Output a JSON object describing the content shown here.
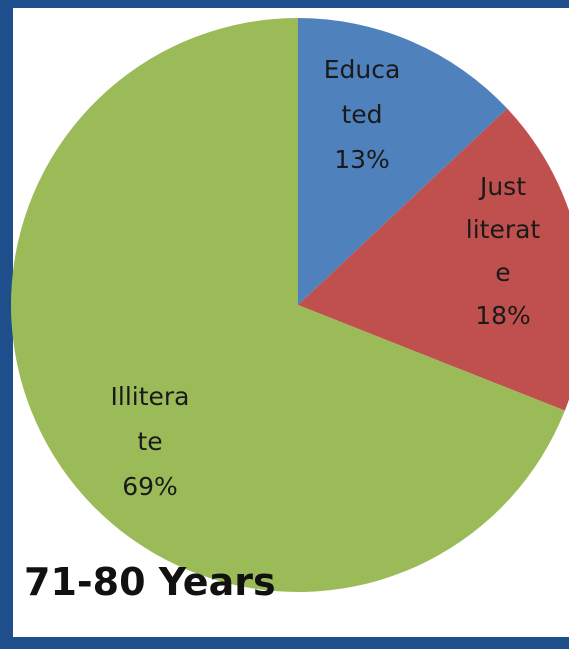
{
  "chart_data": {
    "type": "pie",
    "title": "71-80 Years",
    "slices": [
      {
        "category": "Educated",
        "label_lines": [
          "Educa",
          "ted",
          "13%"
        ],
        "value": 13,
        "color": "#4f81bd"
      },
      {
        "category": "Just literate",
        "label_lines": [
          "Just",
          "literat",
          "e",
          "18%"
        ],
        "value": 18,
        "color": "#c0504d"
      },
      {
        "category": "Illiterate",
        "label_lines": [
          "Illitera",
          "te",
          "69%"
        ],
        "value": 69,
        "color": "#9bbb59"
      }
    ],
    "start": "12 o'clock, clockwise",
    "legend": "none"
  }
}
